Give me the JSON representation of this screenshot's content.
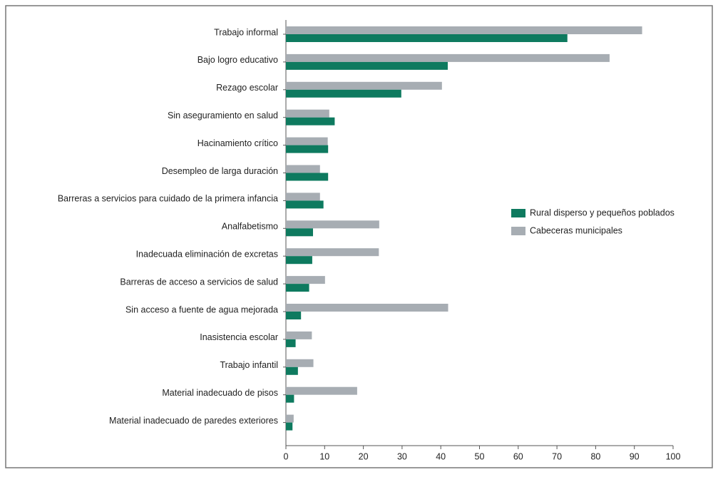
{
  "chart_data": {
    "type": "barh",
    "categories": [
      "Trabajo informal",
      "Bajo logro educativo",
      "Rezago escolar",
      "Sin aseguramiento en salud",
      "Hacinamiento crítico",
      "Desempleo de larga duración",
      "Barreras a servicios para cuidado de la primera infancia",
      "Analfabetismo",
      "Inadecuada eliminación de excretas",
      "Barreras de acceso a servicios de salud",
      "Sin acceso a fuente de agua mejorada",
      "Inasistencia escolar",
      "Trabajo infantil",
      "Material inadecuado de pisos",
      "Material inadecuado de paredes exteriores"
    ],
    "series": [
      {
        "name": "Rural disperso y pequeños poblados",
        "color": "#0e7a5f",
        "values": [
          72.7,
          41.8,
          29.8,
          12.6,
          10.9,
          10.9,
          9.7,
          7.0,
          6.8,
          6.0,
          3.9,
          2.5,
          3.1,
          2.1,
          1.7
        ]
      },
      {
        "name": "Cabeceras municipales",
        "color": "#a7adb3",
        "values": [
          92.0,
          83.6,
          40.3,
          11.2,
          10.8,
          8.8,
          8.8,
          24.1,
          24.0,
          10.1,
          41.9,
          6.7,
          7.1,
          18.4,
          2.0
        ]
      }
    ],
    "xlim": [
      0,
      100
    ],
    "xticks": [
      0,
      10,
      20,
      30,
      40,
      50,
      60,
      70,
      80,
      90,
      100
    ],
    "legend": "right"
  }
}
